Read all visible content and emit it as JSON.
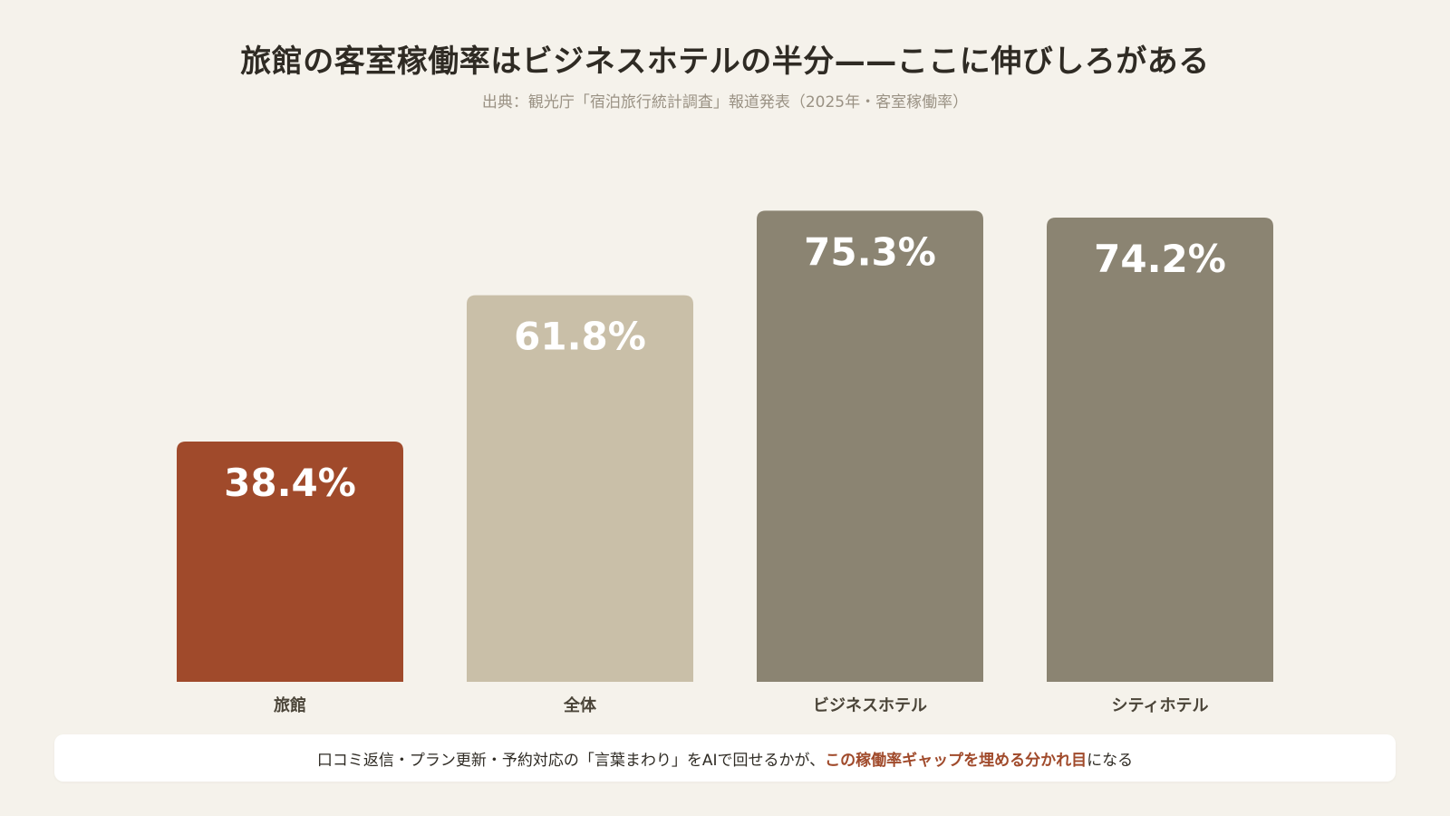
{
  "header": {
    "title": "旅館の客室稼働率はビジネスホテルの半分——ここに伸びしろがある",
    "subtitle": "出典：観光庁「宿泊旅行統計調査」報道発表（2025年・客室稼働率）"
  },
  "chart_data": {
    "type": "bar",
    "title": "旅館の客室稼働率はビジネスホテルの半分——ここに伸びしろがある",
    "subtitle": "出典：観光庁「宿泊旅行統計調査」報道発表（2025年・客室稼働率）",
    "categories": [
      "旅館",
      "全体",
      "ビジネスホテル",
      "シティホテル"
    ],
    "values": [
      38.4,
      61.8,
      75.3,
      74.2
    ],
    "value_labels": [
      "38.4%",
      "61.8%",
      "75.3%",
      "74.2%"
    ],
    "unit": "%",
    "xlabel": "",
    "ylabel": "",
    "ylim": [
      0,
      100
    ],
    "grid": false,
    "legend": "none",
    "bar_colors": [
      "#a04a2b",
      "#c9bfa8",
      "#8b8472",
      "#8b8472"
    ]
  },
  "note": {
    "text_before": "口コミ返信・プラン更新・予約対応の「言葉まわり」をAIで回せるかが、",
    "highlight": "この稼働率ギャップを埋める分かれ目",
    "text_after": "になる"
  },
  "colors": {
    "background": "#f5f2eb",
    "accent": "#a04a2b",
    "text": "#2f2b24",
    "muted": "#9a9284"
  }
}
